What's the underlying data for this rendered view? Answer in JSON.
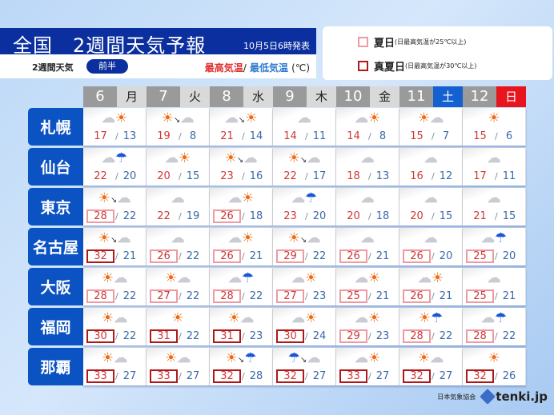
{
  "header": {
    "title": "全国　2週間天気予報",
    "issued": "10月5日6時発表",
    "sub_label": "2週間天気",
    "half_badge": "前半",
    "high_label": "最高気温",
    "separator": "/",
    "low_label": "最低気温",
    "unit": "(℃)"
  },
  "legend": [
    {
      "label": "夏日",
      "note": "(日最高気温が25℃以上)",
      "color": "#ee9aa0"
    },
    {
      "label": "真夏日",
      "note": "(日最高気温が30℃以上)",
      "color": "#b01818"
    }
  ],
  "colors": {
    "banner": "#0b2f9e",
    "city": "#0b52c2",
    "saturday": "#1560d0",
    "sunday": "#e8141e",
    "high": "#d03838",
    "low": "#3a6aa8"
  },
  "days": [
    {
      "num": "6",
      "wd": "月",
      "type": "weekday"
    },
    {
      "num": "7",
      "wd": "火",
      "type": "weekday"
    },
    {
      "num": "8",
      "wd": "水",
      "type": "weekday"
    },
    {
      "num": "9",
      "wd": "木",
      "type": "weekday"
    },
    {
      "num": "10",
      "wd": "金",
      "type": "weekday"
    },
    {
      "num": "11",
      "wd": "土",
      "type": "sat"
    },
    {
      "num": "12",
      "wd": "日",
      "type": "sun"
    }
  ],
  "cities": [
    {
      "name": "札幌",
      "days": [
        {
          "w": "cloud|sun",
          "hi": 17,
          "lo": 13
        },
        {
          "w": "sun>cloud",
          "hi": 19,
          "lo": 8
        },
        {
          "w": "cloud>sun",
          "hi": 21,
          "lo": 14
        },
        {
          "w": "cloud",
          "hi": 14,
          "lo": 11
        },
        {
          "w": "cloud|sun",
          "hi": 14,
          "lo": 8
        },
        {
          "w": "sun|cloud",
          "hi": 15,
          "lo": 7
        },
        {
          "w": "sun",
          "hi": 15,
          "lo": 6
        }
      ]
    },
    {
      "name": "仙台",
      "days": [
        {
          "w": "cloud|rain",
          "hi": 22,
          "lo": 20
        },
        {
          "w": "cloud|sun",
          "hi": 20,
          "lo": 15
        },
        {
          "w": "sun>cloud",
          "hi": 23,
          "lo": 16
        },
        {
          "w": "sun>cloud",
          "hi": 22,
          "lo": 17
        },
        {
          "w": "cloud",
          "hi": 18,
          "lo": 13
        },
        {
          "w": "cloud",
          "hi": 16,
          "lo": 12
        },
        {
          "w": "cloud",
          "hi": 17,
          "lo": 11
        }
      ]
    },
    {
      "name": "東京",
      "days": [
        {
          "w": "sun>cloud",
          "hi": 28,
          "lo": 22
        },
        {
          "w": "cloud",
          "hi": 22,
          "lo": 19
        },
        {
          "w": "cloud|sun",
          "hi": 26,
          "lo": 18
        },
        {
          "w": "cloud|rain",
          "hi": 23,
          "lo": 20
        },
        {
          "w": "cloud",
          "hi": 20,
          "lo": 18
        },
        {
          "w": "cloud",
          "hi": 20,
          "lo": 15
        },
        {
          "w": "cloud",
          "hi": 21,
          "lo": 15
        }
      ]
    },
    {
      "name": "名古屋",
      "days": [
        {
          "w": "sun>cloud",
          "hi": 32,
          "lo": 21
        },
        {
          "w": "cloud",
          "hi": 26,
          "lo": 22
        },
        {
          "w": "cloud|sun",
          "hi": 26,
          "lo": 21
        },
        {
          "w": "sun>cloud",
          "hi": 29,
          "lo": 22
        },
        {
          "w": "cloud",
          "hi": 26,
          "lo": 21
        },
        {
          "w": "cloud",
          "hi": 26,
          "lo": 20
        },
        {
          "w": "cloud|rain",
          "hi": 25,
          "lo": 20
        }
      ]
    },
    {
      "name": "大阪",
      "days": [
        {
          "w": "sun|cloud",
          "hi": 28,
          "lo": 22
        },
        {
          "w": "sun|cloud",
          "hi": 27,
          "lo": 22
        },
        {
          "w": "cloud|rain",
          "hi": 28,
          "lo": 22
        },
        {
          "w": "cloud|sun",
          "hi": 27,
          "lo": 23
        },
        {
          "w": "cloud|sun",
          "hi": 25,
          "lo": 21
        },
        {
          "w": "cloud|sun",
          "hi": 26,
          "lo": 21
        },
        {
          "w": "cloud",
          "hi": 25,
          "lo": 21
        }
      ]
    },
    {
      "name": "福岡",
      "days": [
        {
          "w": "sun|cloud",
          "hi": 30,
          "lo": 22
        },
        {
          "w": "sun",
          "hi": 31,
          "lo": 22
        },
        {
          "w": "sun|cloud",
          "hi": 31,
          "lo": 23
        },
        {
          "w": "cloud|sun",
          "hi": 30,
          "lo": 24
        },
        {
          "w": "cloud|sun",
          "hi": 29,
          "lo": 23
        },
        {
          "w": "sun|rain",
          "hi": 28,
          "lo": 22
        },
        {
          "w": "cloud|rain",
          "hi": 28,
          "lo": 22
        }
      ]
    },
    {
      "name": "那覇",
      "days": [
        {
          "w": "sun|cloud",
          "hi": 33,
          "lo": 27
        },
        {
          "w": "sun|cloud",
          "hi": 33,
          "lo": 27
        },
        {
          "w": "sun>rain",
          "hi": 32,
          "lo": 28
        },
        {
          "w": "rain>cloud",
          "hi": 32,
          "lo": 27
        },
        {
          "w": "cloud|sun",
          "hi": 33,
          "lo": 27
        },
        {
          "w": "sun|cloud",
          "hi": 32,
          "lo": 27
        },
        {
          "w": "sun",
          "hi": 32,
          "lo": 26
        }
      ]
    }
  ],
  "footer": {
    "association": "日本気象協会",
    "logo": "tenki.jp"
  }
}
